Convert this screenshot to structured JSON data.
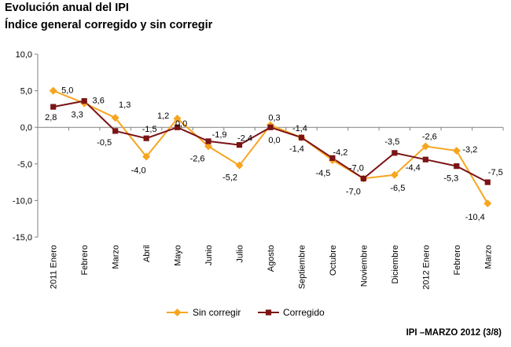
{
  "header": {
    "title": "Evolución anual del IPI",
    "subtitle": "Índice general corregido y sin corregir"
  },
  "footer": {
    "text": "IPI –MARZO 2012 (3/8)"
  },
  "colors": {
    "sin_corregir": "#F7A51F",
    "corregido": "#7B1416",
    "axis": "#808080",
    "text": "#000000"
  },
  "chart_data": {
    "type": "line",
    "categories": [
      "2011 Enero",
      "Febrero",
      "Marzo",
      "Abril",
      "Mayo",
      "Junio",
      "Julio",
      "Agosto",
      "Septiembre",
      "Octubre",
      "Noviembre",
      "Diciembre",
      "2012 Enero",
      "Febrero",
      "Marzo"
    ],
    "ylim": [
      -15,
      10
    ],
    "yticks": [
      10,
      5,
      0,
      -5,
      -10,
      -15
    ],
    "ytick_labels": [
      "10,0",
      "5,0",
      "0,0",
      "-5,0",
      "-10,0",
      "-15,0"
    ],
    "grid": false,
    "legend": "bottom",
    "series": [
      {
        "name": "Sin corregir",
        "marker": "diamond",
        "values": [
          5.0,
          3.3,
          1.3,
          -4.0,
          1.2,
          -2.6,
          -5.2,
          0.3,
          -1.4,
          -4.5,
          -7.0,
          -6.5,
          -2.6,
          -3.2,
          -10.4
        ],
        "labels": [
          "5,0",
          "3,3",
          "1,3",
          "-4,0",
          "1,2",
          "-2,6",
          "-5,2",
          "0,3",
          "-1,4",
          "-4,5",
          "-7,0",
          "-6,5",
          "-2,6",
          "-3,2",
          "-10,4"
        ]
      },
      {
        "name": "Corregido",
        "marker": "square",
        "values": [
          2.8,
          3.6,
          -0.5,
          -1.5,
          0.0,
          -1.9,
          -2.4,
          0.0,
          -1.4,
          -4.2,
          -7.0,
          -3.5,
          -4.4,
          -5.3,
          -7.5
        ],
        "labels": [
          "2,8",
          "3,6",
          "-0,5",
          "-1,5",
          "0,0",
          "-1,9",
          "-2,4",
          "0,0",
          "-1,4",
          "-4,2",
          "-7,0",
          "-3,5",
          "-4,4",
          "-5,3",
          "-7,5"
        ]
      }
    ]
  }
}
